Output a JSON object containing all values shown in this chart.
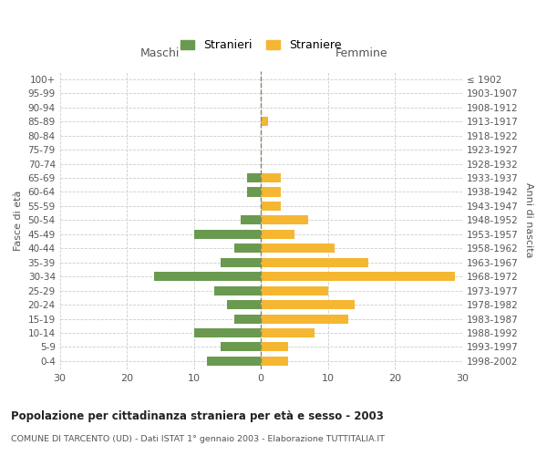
{
  "age_groups": [
    "0-4",
    "5-9",
    "10-14",
    "15-19",
    "20-24",
    "25-29",
    "30-34",
    "35-39",
    "40-44",
    "45-49",
    "50-54",
    "55-59",
    "60-64",
    "65-69",
    "70-74",
    "75-79",
    "80-84",
    "85-89",
    "90-94",
    "95-99",
    "100+"
  ],
  "birth_years": [
    "1998-2002",
    "1993-1997",
    "1988-1992",
    "1983-1987",
    "1978-1982",
    "1973-1977",
    "1968-1972",
    "1963-1967",
    "1958-1962",
    "1953-1957",
    "1948-1952",
    "1943-1947",
    "1938-1942",
    "1933-1937",
    "1928-1932",
    "1923-1927",
    "1918-1922",
    "1913-1917",
    "1908-1912",
    "1903-1907",
    "≤ 1902"
  ],
  "males": [
    8,
    6,
    10,
    4,
    5,
    7,
    16,
    6,
    4,
    10,
    3,
    0,
    2,
    2,
    0,
    0,
    0,
    0,
    0,
    0,
    0
  ],
  "females": [
    4,
    4,
    8,
    13,
    14,
    10,
    29,
    16,
    11,
    5,
    7,
    3,
    3,
    3,
    0,
    0,
    0,
    1,
    0,
    0,
    0
  ],
  "male_color": "#6a9a50",
  "female_color": "#f5b731",
  "title": "Popolazione per cittadinanza straniera per età e sesso - 2003",
  "subtitle": "COMUNE DI TARCENTO (UD) - Dati ISTAT 1° gennaio 2003 - Elaborazione TUTTITALIA.IT",
  "ylabel_left": "Fasce di età",
  "ylabel_right": "Anni di nascita",
  "xlabel_left": "Maschi",
  "xlabel_right": "Femmine",
  "legend_stranieri": "Stranieri",
  "legend_straniere": "Straniere",
  "xlim": 30,
  "background_color": "#ffffff",
  "grid_color": "#cccccc"
}
